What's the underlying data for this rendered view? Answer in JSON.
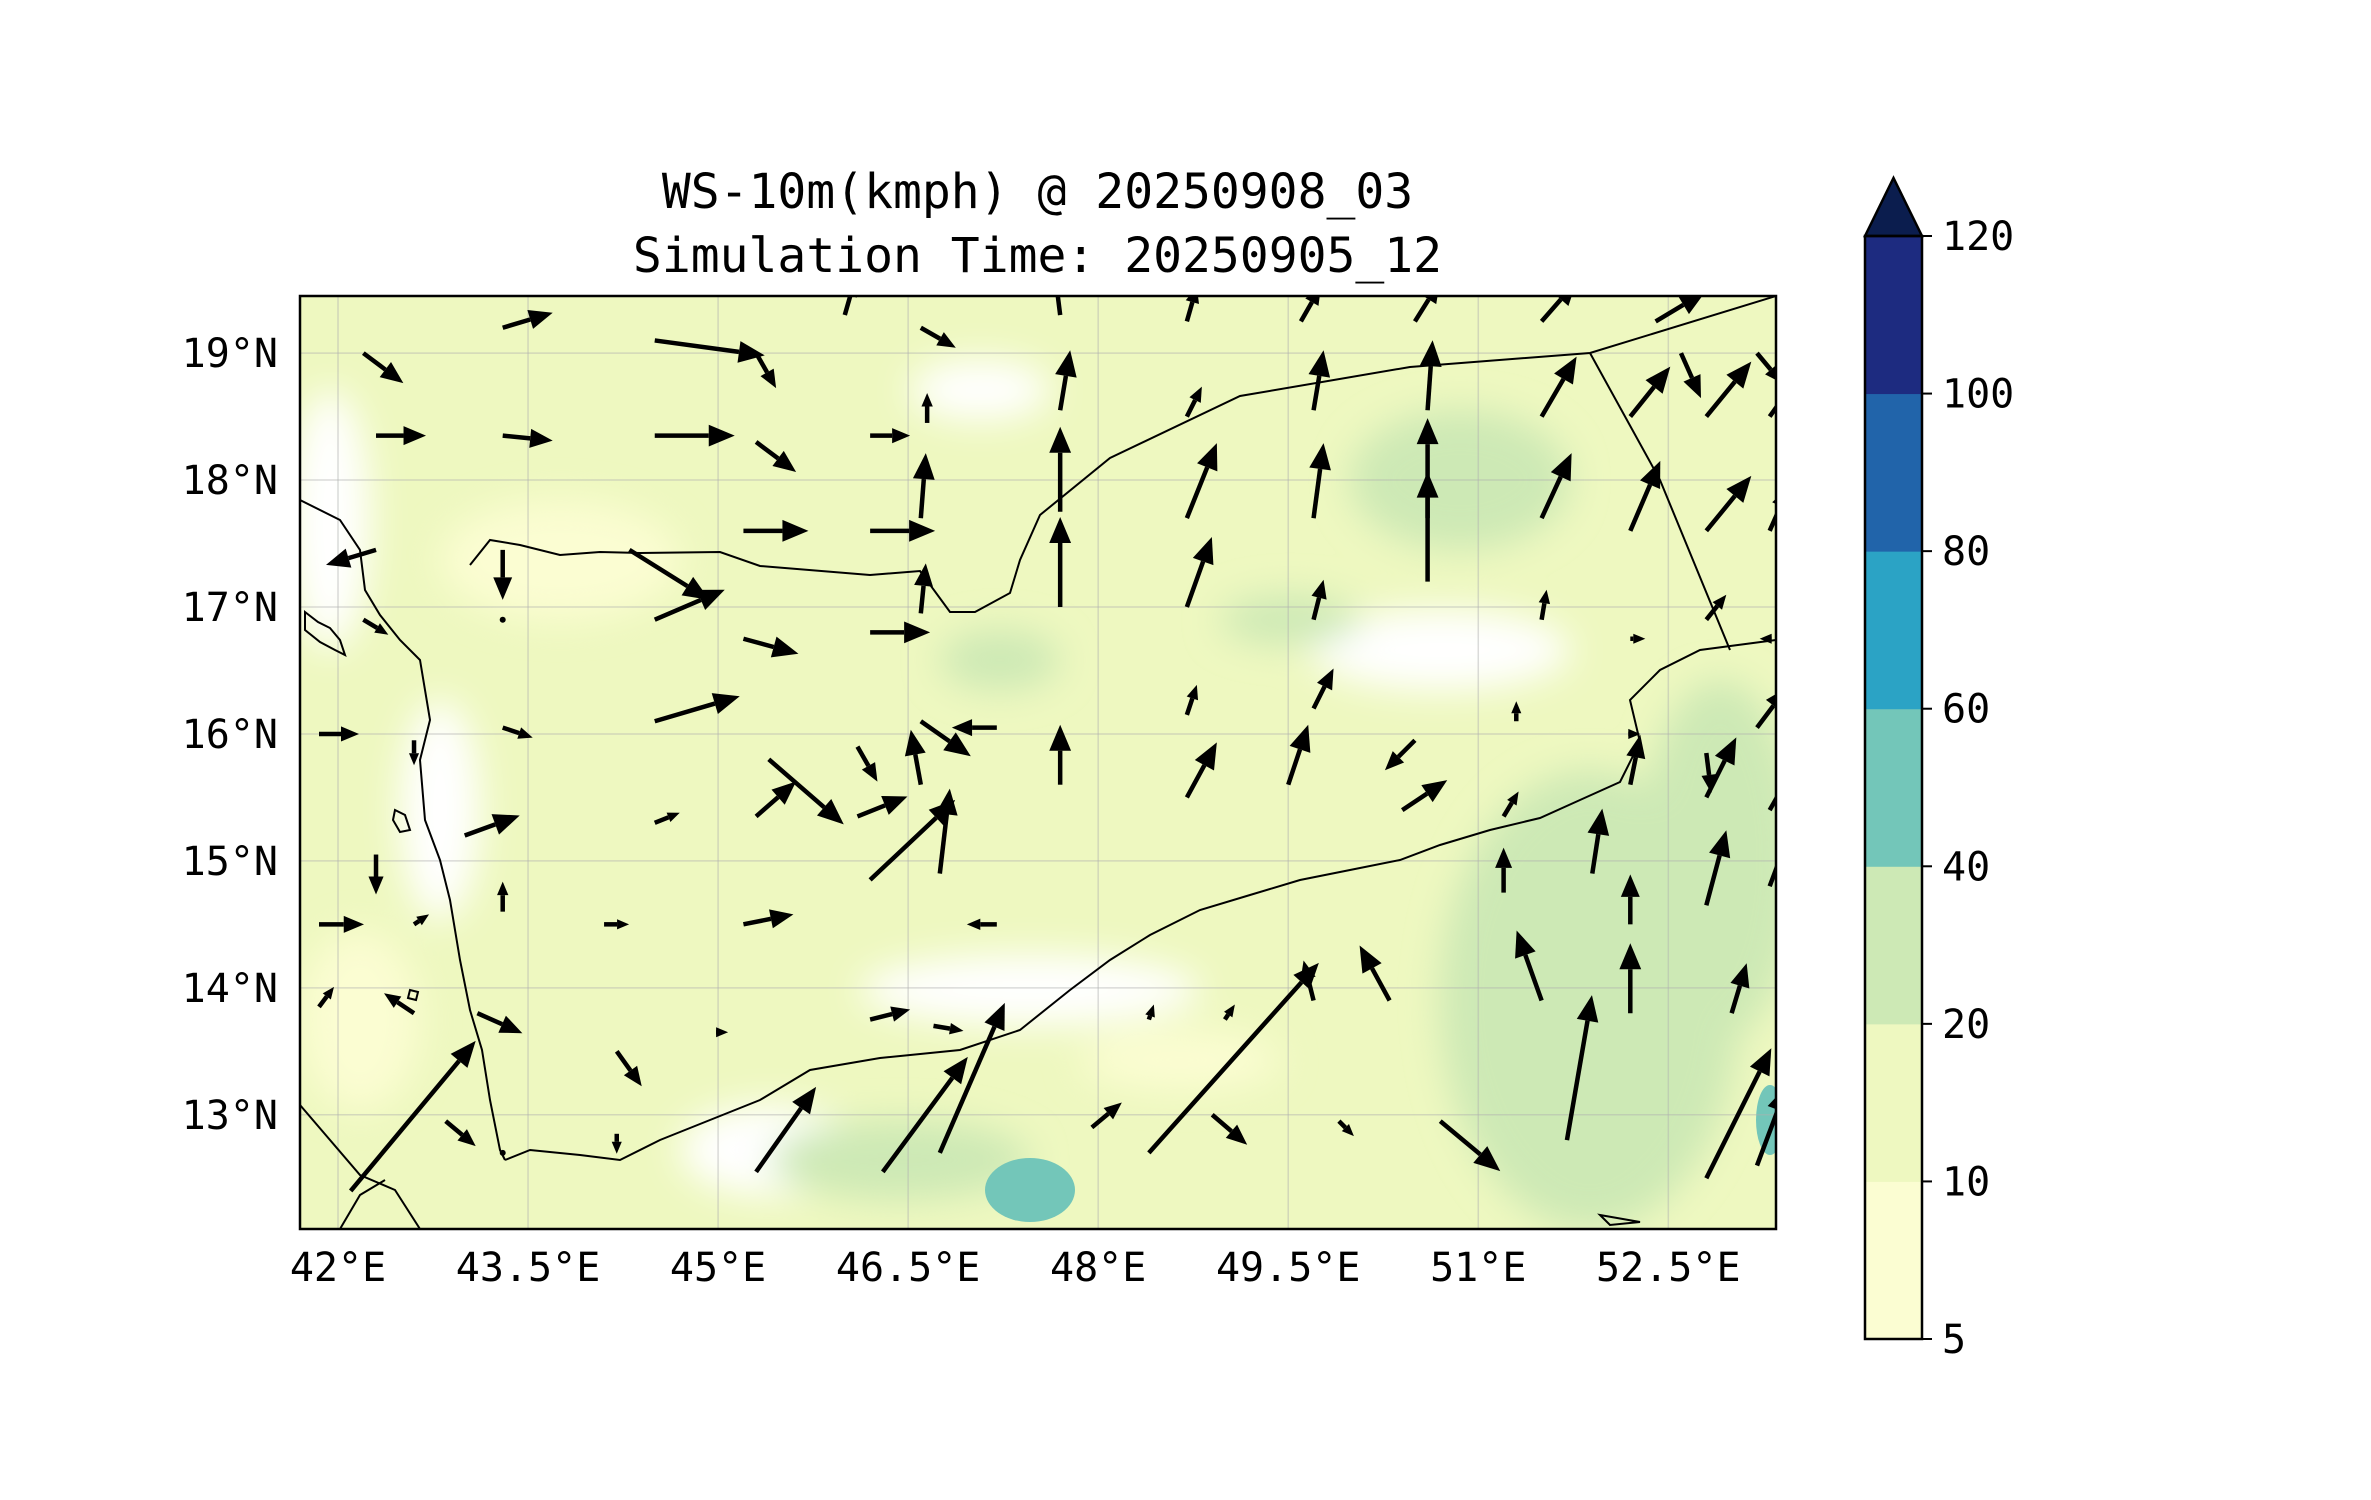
{
  "title": {
    "line1": "WS-10m(kmph) @ 20250908_03",
    "line2": "Simulation Time: 20250905_12"
  },
  "map": {
    "extent_lon": [
      41.7,
      53.35
    ],
    "extent_lat": [
      12.1,
      19.45
    ],
    "lon_ticks": [
      42,
      43.5,
      45,
      46.5,
      48,
      49.5,
      51,
      52.5
    ],
    "lat_ticks": [
      13,
      14,
      15,
      16,
      17,
      18,
      19
    ],
    "lon_tick_labels": [
      "42°E",
      "43.5°E",
      "45°E",
      "46.5°E",
      "48°E",
      "49.5°E",
      "51°E",
      "52.5°E"
    ],
    "lat_tick_labels": [
      "13°N",
      "14°N",
      "15°N",
      "16°N",
      "17°N",
      "18°N",
      "19°N"
    ],
    "gridlines": true,
    "background_field_color": "#eef8c0"
  },
  "colorbar": {
    "levels": [
      5,
      10,
      20,
      40,
      60,
      80,
      100,
      120
    ],
    "level_labels": [
      "5",
      "10",
      "20",
      "40",
      "60",
      "80",
      "100",
      "120"
    ],
    "colors": [
      "#fbfdd2",
      "#eef8c0",
      "#cde9b5",
      "#73c6b9",
      "#2ba3c5",
      "#2164aa",
      "#1d2b80"
    ],
    "extend_color": "#0b1d4e",
    "extend": "max"
  },
  "wind_vectors": [
    {
      "lon": 42.2,
      "lat": 19.0,
      "u": 8,
      "v": -6
    },
    {
      "lon": 43.3,
      "lat": 19.2,
      "u": 10,
      "v": 3
    },
    {
      "lon": 44.5,
      "lat": 19.1,
      "u": 22,
      "v": -3
    },
    {
      "lon": 45.3,
      "lat": 19.0,
      "u": 4,
      "v": -7
    },
    {
      "lon": 46.0,
      "lat": 19.3,
      "u": 2,
      "v": 7
    },
    {
      "lon": 46.6,
      "lat": 19.2,
      "u": 7,
      "v": -4
    },
    {
      "lon": 47.7,
      "lat": 19.3,
      "u": -1,
      "v": 8
    },
    {
      "lon": 48.7,
      "lat": 19.25,
      "u": 2,
      "v": 7
    },
    {
      "lon": 49.6,
      "lat": 19.25,
      "u": 4,
      "v": 7
    },
    {
      "lon": 50.5,
      "lat": 19.25,
      "u": 5,
      "v": 8
    },
    {
      "lon": 51.5,
      "lat": 19.25,
      "u": 7,
      "v": 8
    },
    {
      "lon": 52.4,
      "lat": 19.25,
      "u": 10,
      "v": 6
    },
    {
      "lon": 52.6,
      "lat": 19.0,
      "u": 4,
      "v": -9
    },
    {
      "lon": 53.2,
      "lat": 19.0,
      "u": 5,
      "v": -6
    },
    {
      "lon": 42.3,
      "lat": 18.35,
      "u": 10,
      "v": 0
    },
    {
      "lon": 43.3,
      "lat": 18.35,
      "u": 10,
      "v": -1
    },
    {
      "lon": 44.5,
      "lat": 18.35,
      "u": 16,
      "v": 0
    },
    {
      "lon": 45.3,
      "lat": 18.3,
      "u": 8,
      "v": -6
    },
    {
      "lon": 46.2,
      "lat": 18.35,
      "u": 8,
      "v": 0
    },
    {
      "lon": 46.65,
      "lat": 18.45,
      "u": 0,
      "v": 6
    },
    {
      "lon": 47.7,
      "lat": 18.55,
      "u": 2,
      "v": 12
    },
    {
      "lon": 48.7,
      "lat": 18.5,
      "u": 3,
      "v": 6
    },
    {
      "lon": 49.7,
      "lat": 18.55,
      "u": 2,
      "v": 12
    },
    {
      "lon": 50.6,
      "lat": 18.55,
      "u": 1,
      "v": 14
    },
    {
      "lon": 51.5,
      "lat": 18.5,
      "u": 7,
      "v": 12
    },
    {
      "lon": 52.2,
      "lat": 18.5,
      "u": 8,
      "v": 10
    },
    {
      "lon": 52.8,
      "lat": 18.5,
      "u": 9,
      "v": 11
    },
    {
      "lon": 53.3,
      "lat": 18.5,
      "u": 5,
      "v": 7
    },
    {
      "lon": 42.3,
      "lat": 17.45,
      "u": -10,
      "v": -3
    },
    {
      "lon": 43.3,
      "lat": 17.45,
      "u": 0,
      "v": -10
    },
    {
      "lon": 44.3,
      "lat": 17.45,
      "u": 16,
      "v": -10
    },
    {
      "lon": 45.2,
      "lat": 17.6,
      "u": 13,
      "v": 0
    },
    {
      "lon": 46.2,
      "lat": 17.6,
      "u": 13,
      "v": 0
    },
    {
      "lon": 46.6,
      "lat": 17.7,
      "u": 1,
      "v": 13
    },
    {
      "lon": 47.7,
      "lat": 17.75,
      "u": 0,
      "v": 17
    },
    {
      "lon": 48.7,
      "lat": 17.7,
      "u": 6,
      "v": 15
    },
    {
      "lon": 49.7,
      "lat": 17.7,
      "u": 2,
      "v": 15
    },
    {
      "lon": 50.6,
      "lat": 17.7,
      "u": 0,
      "v": 20
    },
    {
      "lon": 51.5,
      "lat": 17.7,
      "u": 6,
      "v": 13
    },
    {
      "lon": 52.2,
      "lat": 17.6,
      "u": 6,
      "v": 14
    },
    {
      "lon": 52.8,
      "lat": 17.6,
      "u": 9,
      "v": 11
    },
    {
      "lon": 53.3,
      "lat": 17.6,
      "u": 4,
      "v": 9
    },
    {
      "lon": 42.2,
      "lat": 16.9,
      "u": 5,
      "v": -3
    },
    {
      "lon": 43.3,
      "lat": 16.9,
      "u": 0,
      "v": 0
    },
    {
      "lon": 44.5,
      "lat": 16.9,
      "u": 14,
      "v": 6
    },
    {
      "lon": 45.2,
      "lat": 16.75,
      "u": 11,
      "v": -3
    },
    {
      "lon": 46.2,
      "lat": 16.8,
      "u": 12,
      "v": 0
    },
    {
      "lon": 46.6,
      "lat": 16.95,
      "u": 1,
      "v": 10
    },
    {
      "lon": 47.7,
      "lat": 17.0,
      "u": 0,
      "v": 18
    },
    {
      "lon": 48.7,
      "lat": 17.0,
      "u": 5,
      "v": 14
    },
    {
      "lon": 49.7,
      "lat": 16.9,
      "u": 2,
      "v": 8
    },
    {
      "lon": 50.6,
      "lat": 17.2,
      "u": 0,
      "v": 22
    },
    {
      "lon": 51.5,
      "lat": 16.9,
      "u": 1,
      "v": 6
    },
    {
      "lon": 52.2,
      "lat": 16.75,
      "u": 3,
      "v": 0
    },
    {
      "lon": 52.8,
      "lat": 16.9,
      "u": 4,
      "v": 5
    },
    {
      "lon": 53.3,
      "lat": 16.75,
      "u": -2,
      "v": 0
    },
    {
      "lon": 41.85,
      "lat": 16.0,
      "u": 8,
      "v": 0
    },
    {
      "lon": 42.6,
      "lat": 15.95,
      "u": 0,
      "v": -5
    },
    {
      "lon": 43.3,
      "lat": 16.05,
      "u": 6,
      "v": -2
    },
    {
      "lon": 44.5,
      "lat": 16.1,
      "u": 17,
      "v": 5
    },
    {
      "lon": 45.4,
      "lat": 15.8,
      "u": 15,
      "v": -13
    },
    {
      "lon": 46.1,
      "lat": 15.9,
      "u": 4,
      "v": -7
    },
    {
      "lon": 46.6,
      "lat": 16.1,
      "u": 10,
      "v": -7
    },
    {
      "lon": 47.2,
      "lat": 16.05,
      "u": -9,
      "v": 0
    },
    {
      "lon": 47.7,
      "lat": 15.6,
      "u": 0,
      "v": 12
    },
    {
      "lon": 48.7,
      "lat": 16.15,
      "u": 2,
      "v": 6
    },
    {
      "lon": 49.5,
      "lat": 15.6,
      "u": 4,
      "v": 12
    },
    {
      "lon": 49.7,
      "lat": 16.2,
      "u": 4,
      "v": 8
    },
    {
      "lon": 50.5,
      "lat": 15.95,
      "u": -6,
      "v": -6
    },
    {
      "lon": 51.3,
      "lat": 16.1,
      "u": 0,
      "v": 4
    },
    {
      "lon": 52.2,
      "lat": 16.0,
      "u": 2,
      "v": 0
    },
    {
      "lon": 52.8,
      "lat": 15.85,
      "u": 1,
      "v": -8
    },
    {
      "lon": 53.2,
      "lat": 16.05,
      "u": 6,
      "v": 8
    },
    {
      "lon": 42.3,
      "lat": 15.05,
      "u": 0,
      "v": -8
    },
    {
      "lon": 43.0,
      "lat": 15.2,
      "u": 11,
      "v": 4
    },
    {
      "lon": 44.5,
      "lat": 15.3,
      "u": 5,
      "v": 2
    },
    {
      "lon": 45.3,
      "lat": 15.35,
      "u": 8,
      "v": 7
    },
    {
      "lon": 46.1,
      "lat": 15.35,
      "u": 10,
      "v": 4
    },
    {
      "lon": 46.6,
      "lat": 15.6,
      "u": -2,
      "v": 11
    },
    {
      "lon": 46.2,
      "lat": 14.85,
      "u": 17,
      "v": 16
    },
    {
      "lon": 46.75,
      "lat": 14.9,
      "u": 2,
      "v": 17
    },
    {
      "lon": 48.7,
      "lat": 15.5,
      "u": 6,
      "v": 11
    },
    {
      "lon": 50.4,
      "lat": 15.4,
      "u": 9,
      "v": 6
    },
    {
      "lon": 51.2,
      "lat": 15.35,
      "u": 3,
      "v": 5
    },
    {
      "lon": 52.2,
      "lat": 15.6,
      "u": 2,
      "v": 10
    },
    {
      "lon": 52.8,
      "lat": 15.5,
      "u": 6,
      "v": 12
    },
    {
      "lon": 53.3,
      "lat": 15.4,
      "u": 8,
      "v": 14
    },
    {
      "lon": 41.85,
      "lat": 14.5,
      "u": 9,
      "v": 0
    },
    {
      "lon": 42.6,
      "lat": 14.5,
      "u": 3,
      "v": 2
    },
    {
      "lon": 43.3,
      "lat": 14.6,
      "u": 0,
      "v": 6
    },
    {
      "lon": 44.1,
      "lat": 14.5,
      "u": 5,
      "v": 0
    },
    {
      "lon": 45.2,
      "lat": 14.5,
      "u": 10,
      "v": 2
    },
    {
      "lon": 47.2,
      "lat": 14.5,
      "u": -6,
      "v": 0
    },
    {
      "lon": 51.2,
      "lat": 14.75,
      "u": 0,
      "v": 9
    },
    {
      "lon": 51.9,
      "lat": 14.9,
      "u": 2,
      "v": 13
    },
    {
      "lon": 52.2,
      "lat": 14.5,
      "u": 0,
      "v": 10
    },
    {
      "lon": 52.8,
      "lat": 14.65,
      "u": 4,
      "v": 15
    },
    {
      "lon": 53.3,
      "lat": 14.8,
      "u": 6,
      "v": 16
    },
    {
      "lon": 41.85,
      "lat": 13.85,
      "u": 3,
      "v": 4
    },
    {
      "lon": 42.6,
      "lat": 13.8,
      "u": -6,
      "v": 4
    },
    {
      "lon": 43.1,
      "lat": 13.8,
      "u": 9,
      "v": -4
    },
    {
      "lon": 44.2,
      "lat": 13.5,
      "u": 5,
      "v": -7
    },
    {
      "lon": 45.0,
      "lat": 13.65,
      "u": 2,
      "v": 0
    },
    {
      "lon": 46.2,
      "lat": 13.75,
      "u": 8,
      "v": 2
    },
    {
      "lon": 46.7,
      "lat": 13.7,
      "u": 6,
      "v": -1
    },
    {
      "lon": 48.4,
      "lat": 13.75,
      "u": 1,
      "v": 3
    },
    {
      "lon": 49.0,
      "lat": 13.75,
      "u": 2,
      "v": 3
    },
    {
      "lon": 49.7,
      "lat": 13.9,
      "u": -2,
      "v": 8
    },
    {
      "lon": 50.3,
      "lat": 13.9,
      "u": -6,
      "v": 11
    },
    {
      "lon": 51.5,
      "lat": 13.9,
      "u": -5,
      "v": 14
    },
    {
      "lon": 52.2,
      "lat": 13.8,
      "u": 0,
      "v": 14
    },
    {
      "lon": 53.0,
      "lat": 13.8,
      "u": 3,
      "v": 10
    },
    {
      "lon": 42.1,
      "lat": 12.4,
      "u": 25,
      "v": 30
    },
    {
      "lon": 42.85,
      "lat": 12.95,
      "u": 6,
      "v": -5
    },
    {
      "lon": 43.3,
      "lat": 12.7,
      "u": 0,
      "v": 0
    },
    {
      "lon": 44.2,
      "lat": 12.85,
      "u": 0,
      "v": -4
    },
    {
      "lon": 45.3,
      "lat": 12.55,
      "u": 12,
      "v": 17
    },
    {
      "lon": 46.3,
      "lat": 12.55,
      "u": 17,
      "v": 23
    },
    {
      "lon": 46.75,
      "lat": 12.7,
      "u": 13,
      "v": 30
    },
    {
      "lon": 47.95,
      "lat": 12.9,
      "u": 6,
      "v": 5
    },
    {
      "lon": 48.4,
      "lat": 12.7,
      "u": 34,
      "v": 38
    },
    {
      "lon": 48.9,
      "lat": 13.0,
      "u": 7,
      "v": -6
    },
    {
      "lon": 49.9,
      "lat": 12.95,
      "u": 3,
      "v": -3
    },
    {
      "lon": 50.7,
      "lat": 12.95,
      "u": 12,
      "v": -10
    },
    {
      "lon": 51.7,
      "lat": 12.8,
      "u": 5,
      "v": 29
    },
    {
      "lon": 52.8,
      "lat": 12.5,
      "u": 13,
      "v": 26
    },
    {
      "lon": 53.2,
      "lat": 12.6,
      "u": 6,
      "v": 16
    }
  ]
}
